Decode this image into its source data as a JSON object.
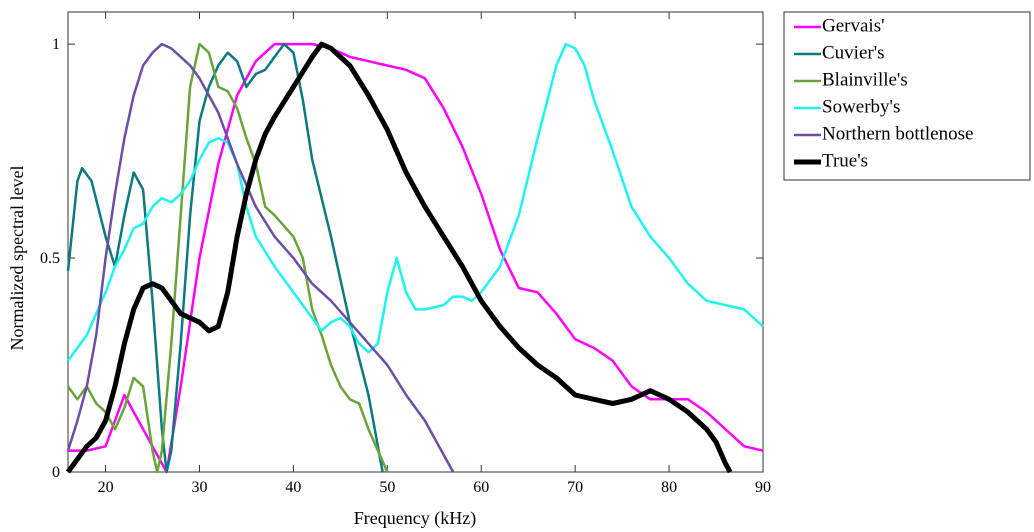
{
  "chart_data": {
    "type": "line",
    "xlabel": "Frequency (kHz)",
    "ylabel": "Normalized spectral level",
    "xlim": [
      16,
      90
    ],
    "ylim": [
      0,
      1.075
    ],
    "xticks": [
      20,
      30,
      40,
      50,
      60,
      70,
      80,
      90
    ],
    "yticks": [
      0,
      0.5,
      1
    ],
    "series": [
      {
        "name": "Gervais'",
        "color": "#ff00ff",
        "width": 2.5,
        "x": [
          16,
          18,
          20,
          22,
          24,
          26.5,
          28,
          30,
          32,
          34,
          36,
          38,
          40,
          42,
          44,
          46,
          48,
          50,
          52,
          54,
          56,
          58,
          60,
          62,
          64,
          66,
          68,
          70,
          72,
          74,
          76,
          78,
          80,
          82,
          84,
          86,
          88,
          90
        ],
        "values": [
          0.05,
          0.05,
          0.06,
          0.18,
          0.1,
          0,
          0.2,
          0.5,
          0.72,
          0.88,
          0.96,
          1,
          1,
          1,
          0.99,
          0.97,
          0.96,
          0.95,
          0.94,
          0.92,
          0.85,
          0.76,
          0.65,
          0.52,
          0.43,
          0.42,
          0.37,
          0.31,
          0.29,
          0.26,
          0.2,
          0.17,
          0.17,
          0.17,
          0.14,
          0.1,
          0.06,
          0.05
        ]
      },
      {
        "name": "Cuvier's",
        "color": "#0b7a80",
        "width": 2.5,
        "x": [
          16,
          17,
          17.5,
          18.5,
          20,
          21,
          22,
          23,
          24,
          25,
          26,
          26.5,
          27,
          28,
          29,
          30,
          31,
          32,
          33,
          34,
          35,
          36,
          37,
          38,
          39,
          40,
          41,
          42,
          44,
          46,
          48,
          49.5
        ],
        "values": [
          0.47,
          0.68,
          0.71,
          0.68,
          0.55,
          0.48,
          0.6,
          0.7,
          0.66,
          0.4,
          0.1,
          0,
          0.05,
          0.3,
          0.6,
          0.82,
          0.9,
          0.95,
          0.98,
          0.96,
          0.9,
          0.93,
          0.94,
          0.97,
          1,
          0.98,
          0.87,
          0.73,
          0.55,
          0.35,
          0.18,
          0
        ]
      },
      {
        "name": "Blainville's",
        "color": "#6aa339",
        "width": 2.5,
        "x": [
          16,
          17,
          18,
          19,
          20,
          21,
          22,
          23,
          24,
          25,
          25.5,
          26,
          27,
          28,
          29,
          30,
          31,
          32,
          33,
          34,
          35,
          36,
          37,
          38,
          40,
          41,
          42,
          43,
          44,
          45,
          46,
          47,
          48,
          49,
          50
        ],
        "values": [
          0.2,
          0.17,
          0.2,
          0.16,
          0.14,
          0.1,
          0.15,
          0.22,
          0.2,
          0.05,
          0,
          0.05,
          0.3,
          0.6,
          0.9,
          1,
          0.98,
          0.9,
          0.89,
          0.85,
          0.78,
          0.72,
          0.62,
          0.6,
          0.55,
          0.5,
          0.38,
          0.32,
          0.25,
          0.2,
          0.17,
          0.16,
          0.1,
          0.05,
          0
        ]
      },
      {
        "name": "Sowerby's",
        "color": "#1ff2f2",
        "width": 2.5,
        "x": [
          16,
          18,
          20,
          21,
          22,
          23,
          24,
          25,
          26,
          27,
          28,
          29,
          30,
          31,
          32,
          33,
          34,
          35,
          36,
          38,
          40,
          42,
          43,
          44,
          45,
          46,
          47,
          48,
          49,
          50,
          51,
          52,
          53,
          54,
          56,
          57,
          58,
          59,
          60,
          62,
          64,
          66,
          68,
          69,
          70,
          71,
          72,
          74,
          76,
          78,
          80,
          82,
          84,
          86,
          88,
          89,
          90
        ],
        "values": [
          0.26,
          0.32,
          0.42,
          0.48,
          0.52,
          0.57,
          0.58,
          0.62,
          0.64,
          0.63,
          0.65,
          0.68,
          0.73,
          0.77,
          0.78,
          0.77,
          0.72,
          0.62,
          0.55,
          0.48,
          0.42,
          0.36,
          0.33,
          0.35,
          0.36,
          0.34,
          0.3,
          0.28,
          0.3,
          0.42,
          0.5,
          0.42,
          0.38,
          0.38,
          0.39,
          0.41,
          0.41,
          0.4,
          0.42,
          0.48,
          0.6,
          0.78,
          0.95,
          1,
          0.99,
          0.95,
          0.87,
          0.75,
          0.62,
          0.55,
          0.5,
          0.44,
          0.4,
          0.39,
          0.38,
          0.36,
          0.34
        ]
      },
      {
        "name": "Northern bottlenose",
        "color": "#6a4ea8",
        "width": 2.5,
        "x": [
          16,
          17,
          18,
          19,
          20,
          21,
          22,
          23,
          24,
          25,
          26,
          27,
          28,
          29,
          30,
          32,
          34,
          36,
          38,
          40,
          42,
          44,
          46,
          48,
          50,
          52,
          54,
          56,
          57
        ],
        "values": [
          0.05,
          0.12,
          0.2,
          0.32,
          0.5,
          0.65,
          0.78,
          0.88,
          0.95,
          0.98,
          1,
          0.99,
          0.97,
          0.95,
          0.92,
          0.84,
          0.72,
          0.62,
          0.55,
          0.5,
          0.44,
          0.4,
          0.35,
          0.3,
          0.25,
          0.18,
          0.12,
          0.04,
          0
        ]
      },
      {
        "name": "True's",
        "color": "#000000",
        "width": 5,
        "x": [
          16,
          17,
          18,
          19,
          20,
          21,
          22,
          23,
          24,
          25,
          26,
          27,
          28,
          29,
          30,
          31,
          32,
          33,
          34,
          35,
          36,
          37,
          38,
          40,
          42,
          43,
          44,
          46,
          48,
          50,
          52,
          54,
          56,
          58,
          60,
          62,
          64,
          66,
          68,
          70,
          72,
          74,
          76,
          77,
          78,
          79,
          80,
          82,
          84,
          85,
          86,
          86.5
        ],
        "values": [
          0,
          0.03,
          0.06,
          0.08,
          0.12,
          0.2,
          0.3,
          0.38,
          0.43,
          0.44,
          0.43,
          0.4,
          0.37,
          0.36,
          0.35,
          0.33,
          0.34,
          0.42,
          0.55,
          0.65,
          0.73,
          0.79,
          0.83,
          0.9,
          0.97,
          1,
          0.99,
          0.95,
          0.88,
          0.8,
          0.7,
          0.62,
          0.55,
          0.48,
          0.4,
          0.34,
          0.29,
          0.25,
          0.22,
          0.18,
          0.17,
          0.16,
          0.17,
          0.18,
          0.19,
          0.18,
          0.17,
          0.14,
          0.1,
          0.07,
          0.02,
          0
        ]
      }
    ]
  }
}
